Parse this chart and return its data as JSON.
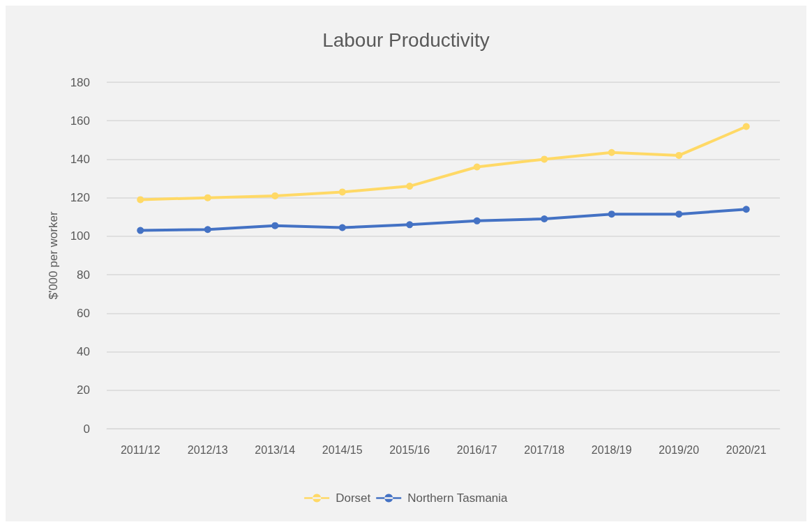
{
  "chart_data": {
    "type": "line",
    "title": "Labour Productivity",
    "ylabel": "$'000 per worker",
    "categories": [
      "2011/12",
      "2012/13",
      "2013/14",
      "2014/15",
      "2015/16",
      "2016/17",
      "2017/18",
      "2018/19",
      "2019/20",
      "2020/21"
    ],
    "series": [
      {
        "name": "Dorset",
        "color": "#ffd966",
        "values": [
          119,
          120,
          121,
          123,
          126,
          136,
          140,
          143.5,
          142,
          157
        ]
      },
      {
        "name": "Northern Tasmania",
        "color": "#4472c4",
        "values": [
          103,
          103.5,
          105.5,
          104.5,
          106,
          108,
          109,
          111.5,
          111.5,
          114
        ]
      }
    ],
    "ylim": [
      0,
      180
    ],
    "yticks": [
      0,
      20,
      40,
      60,
      80,
      100,
      120,
      140,
      160,
      180
    ],
    "grid": "y",
    "legend": "bottom",
    "marker": "circle",
    "line_style": "solid"
  }
}
